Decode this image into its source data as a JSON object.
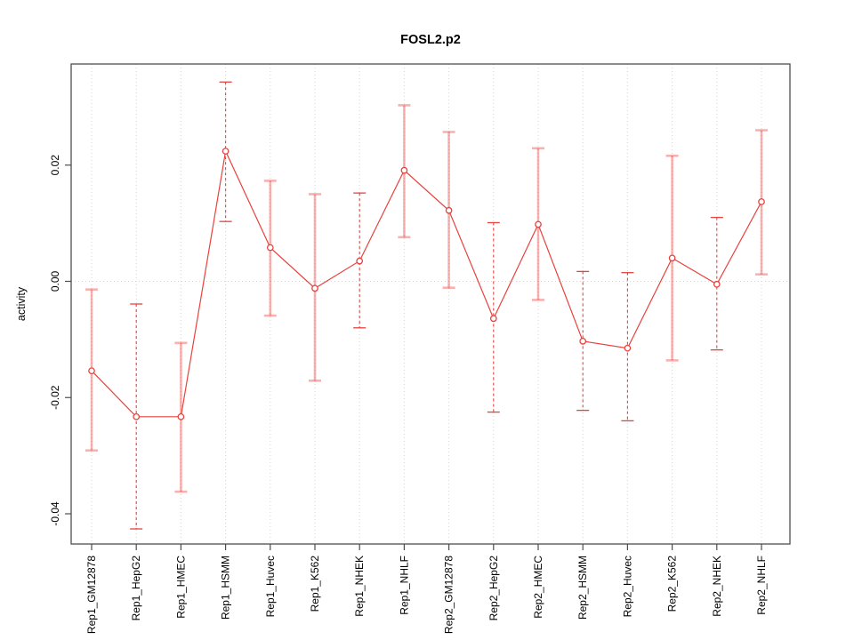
{
  "figure": {
    "title": "FOSL2.p2"
  },
  "chart_data": {
    "type": "scatter",
    "subtype": "points-with-error-bars",
    "title": "FOSL2.p2",
    "xlabel": "",
    "ylabel": "activity",
    "legend_position": "none",
    "categories": [
      "Rep1_GM12878",
      "Rep1_HepG2",
      "Rep1_HMEC",
      "Rep1_HSMM",
      "Rep1_Huvec",
      "Rep1_K562",
      "Rep1_NHEK",
      "Rep1_NHLF",
      "Rep2_GM12878",
      "Rep2_HepG2",
      "Rep2_HMEC",
      "Rep2_HSMM",
      "Rep2_Huvec",
      "Rep2_K562",
      "Rep2_NHEK",
      "Rep2_NHLF"
    ],
    "series": [
      {
        "name": "activity",
        "values": [
          -0.0154,
          -0.0233,
          -0.0233,
          0.0224,
          0.0058,
          -0.0012,
          0.0035,
          0.0191,
          0.0122,
          -0.0064,
          0.0098,
          -0.0103,
          -0.0115,
          0.004,
          -0.0005,
          0.0137
        ],
        "error_high": [
          -0.0014,
          -0.0039,
          -0.0106,
          0.0343,
          0.0173,
          0.015,
          0.0152,
          0.0303,
          0.0257,
          0.0101,
          0.0229,
          0.0017,
          0.0015,
          0.0216,
          0.011,
          0.026
        ],
        "error_low": [
          -0.0291,
          -0.0426,
          -0.0362,
          0.0103,
          -0.0059,
          -0.0171,
          -0.008,
          0.0076,
          -0.0011,
          -0.0225,
          -0.0032,
          -0.0222,
          -0.024,
          -0.0136,
          -0.0118,
          0.0012
        ],
        "bar_styles": [
          "solid",
          "dashed",
          "solid",
          "dashed",
          "solid",
          "solid",
          "dashed",
          "solid",
          "solid",
          "dashed",
          "solid",
          "dashed",
          "dashed",
          "solid",
          "dashed",
          "solid"
        ]
      }
    ],
    "ylim": [
      -0.0452,
      0.0374
    ],
    "yticks": {
      "labels": [
        "0.02",
        "0.00",
        "-0.02",
        "-0.04"
      ],
      "values": [
        0.02,
        0.0,
        -0.02,
        -0.04
      ]
    },
    "grid": {
      "horizontal_at": [
        0.0
      ],
      "vertical": "at-every-category",
      "style": "dotted"
    },
    "colors": {
      "point": "#e8423e",
      "line": "#e8423e",
      "bar_solid": "#f04640",
      "bar_solid_opacity": 0.42,
      "bar_dashed": "#e8423e",
      "grid": "#d4d4d4",
      "axis": "#4d4d4d",
      "background": "#ffffff"
    }
  }
}
